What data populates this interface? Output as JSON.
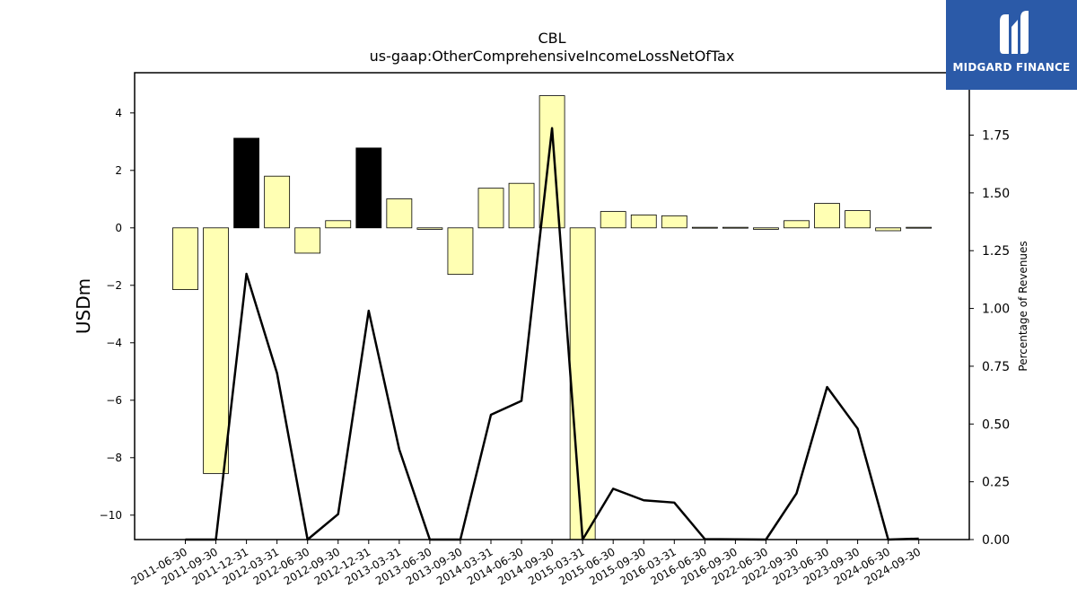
{
  "chart_data": {
    "type": "bar",
    "title": "CBL",
    "subtitle": "us-gaap:OtherComprehensiveIncomeLossNetOfTax",
    "ylabel": "USDm",
    "y2label": "Percentage of Revenues",
    "ylim": [
      -10.85,
      5.4
    ],
    "y2lim": [
      0.0,
      2.02
    ],
    "yticks": [
      "4",
      "2",
      "0",
      "−2",
      "−4",
      "−6",
      "−8",
      "−10"
    ],
    "y2ticks": [
      "1.75",
      "1.50",
      "1.25",
      "1.00",
      "0.75",
      "0.50",
      "0.25",
      "0.00"
    ],
    "categories": [
      "2011-06-30",
      "2011-09-30",
      "2011-12-31",
      "2012-03-31",
      "2012-06-30",
      "2012-09-30",
      "2012-12-31",
      "2013-03-31",
      "2013-06-30",
      "2013-09-30",
      "2014-03-31",
      "2014-06-30",
      "2014-09-30",
      "2015-03-31",
      "2015-06-30",
      "2015-09-30",
      "2016-03-31",
      "2016-06-30",
      "2016-09-30",
      "2022-06-30",
      "2022-09-30",
      "2023-06-30",
      "2023-09-30",
      "2024-06-30",
      "2024-09-30"
    ],
    "values": [
      -2.15,
      -8.55,
      3.12,
      1.8,
      -0.88,
      0.25,
      2.78,
      1.01,
      -0.05,
      -1.62,
      1.38,
      1.55,
      4.6,
      -10.85,
      0.57,
      0.45,
      0.42,
      0.02,
      0.02,
      -0.05,
      0.25,
      0.85,
      0.6,
      -0.1,
      0.02
    ],
    "highlight": [
      false,
      false,
      true,
      false,
      false,
      false,
      true,
      false,
      false,
      false,
      false,
      false,
      false,
      false,
      false,
      false,
      false,
      false,
      false,
      false,
      false,
      false,
      false,
      false,
      false
    ],
    "line_values": [
      null,
      null,
      1.15,
      0.72,
      null,
      0.11,
      0.99,
      0.39,
      null,
      null,
      0.54,
      0.6,
      1.78,
      null,
      0.22,
      0.17,
      0.16,
      0.002,
      0.001,
      null,
      0.2,
      0.66,
      0.48,
      null,
      0.004
    ],
    "bar_color": "#ffffb3",
    "highlight_color": "#000000",
    "line_color": "#000000"
  },
  "logo": {
    "text": "MIDGARD FINANCE",
    "bg_color": "#2b5aa8"
  }
}
